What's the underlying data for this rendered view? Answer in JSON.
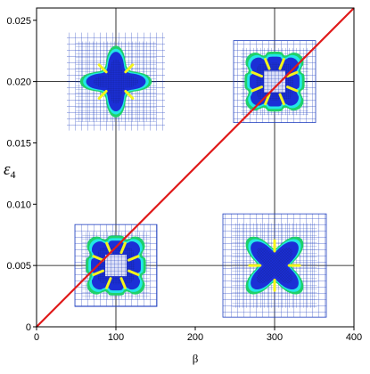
{
  "chart_data": {
    "type": "line",
    "xlabel": "β",
    "ylabel_base": "ε",
    "ylabel_sub": "4",
    "xlim": [
      0,
      400
    ],
    "ylim": [
      0,
      0.026
    ],
    "x_ticks": [
      "0",
      "100",
      "200",
      "300",
      "400"
    ],
    "x_tick_values": [
      0,
      100,
      200,
      300,
      400
    ],
    "y_ticks": [
      "0",
      "0.005",
      "0.010",
      "0.015",
      "0.020",
      "0.025"
    ],
    "y_tick_values": [
      0,
      0.005,
      0.01,
      0.015,
      0.02,
      0.025
    ],
    "reference_lines": {
      "x": [
        100,
        300
      ],
      "y": [
        0.005,
        0.02
      ]
    },
    "grid": false,
    "series": [
      {
        "x": [
          0,
          400
        ],
        "y": [
          0,
          0.026
        ],
        "color": "#e01a1a"
      }
    ],
    "insets": [
      {
        "shape": "four-lobed star",
        "center": [
          100,
          0.02
        ]
      },
      {
        "shape": "square with eight notches",
        "center": [
          300,
          0.02
        ]
      },
      {
        "shape": "square with eight notches",
        "center": [
          100,
          0.005
        ]
      },
      {
        "shape": "four-armed star",
        "center": [
          300,
          0.005
        ]
      }
    ],
    "colors": {
      "mesh": "#1f3fbf",
      "outer_band": "#1fd16a",
      "inner_band": "#22e6e6",
      "solid": "#1b2fd6",
      "yellow": "#f4f41a"
    }
  }
}
